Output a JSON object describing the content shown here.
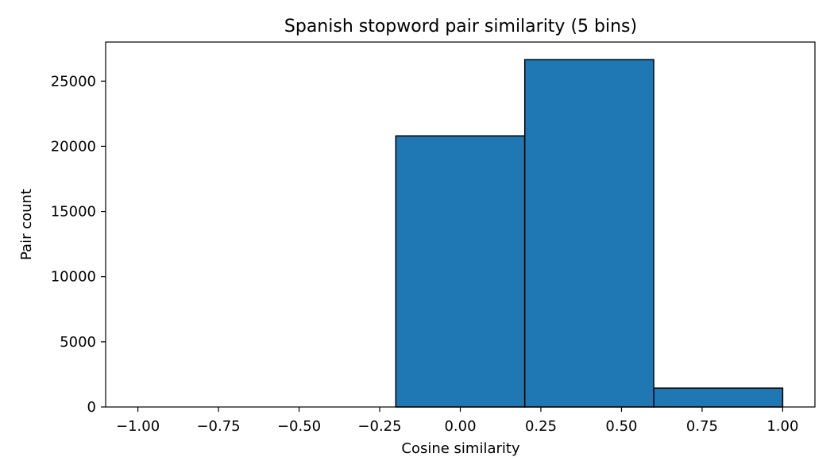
{
  "chart_data": {
    "type": "bar",
    "title": "Spanish stopword pair similarity (5 bins)",
    "xlabel": "Cosine similarity",
    "ylabel": "Pair count",
    "xlim": [
      -1.1,
      1.1
    ],
    "ylim": [
      0,
      28000
    ],
    "xticks": [
      -1.0,
      -0.75,
      -0.5,
      -0.25,
      0.0,
      0.25,
      0.5,
      0.75,
      1.0
    ],
    "xtick_labels": [
      "−1.00",
      "−0.75",
      "−0.50",
      "−0.25",
      "0.00",
      "0.25",
      "0.50",
      "0.75",
      "1.00"
    ],
    "yticks": [
      0,
      5000,
      10000,
      15000,
      20000,
      25000
    ],
    "ytick_labels": [
      "0",
      "5000",
      "10000",
      "15000",
      "20000",
      "25000"
    ],
    "bins": [
      {
        "x0": -1.0,
        "x1": -0.6,
        "count": 0
      },
      {
        "x0": -0.6,
        "x1": -0.2,
        "count": 0
      },
      {
        "x0": -0.2,
        "x1": 0.2,
        "count": 20800
      },
      {
        "x0": 0.2,
        "x1": 0.6,
        "count": 26650
      },
      {
        "x0": 0.6,
        "x1": 1.0,
        "count": 1450
      }
    ],
    "bar_color": "#1f77b4",
    "edge_color": "#000000",
    "grid": false
  }
}
